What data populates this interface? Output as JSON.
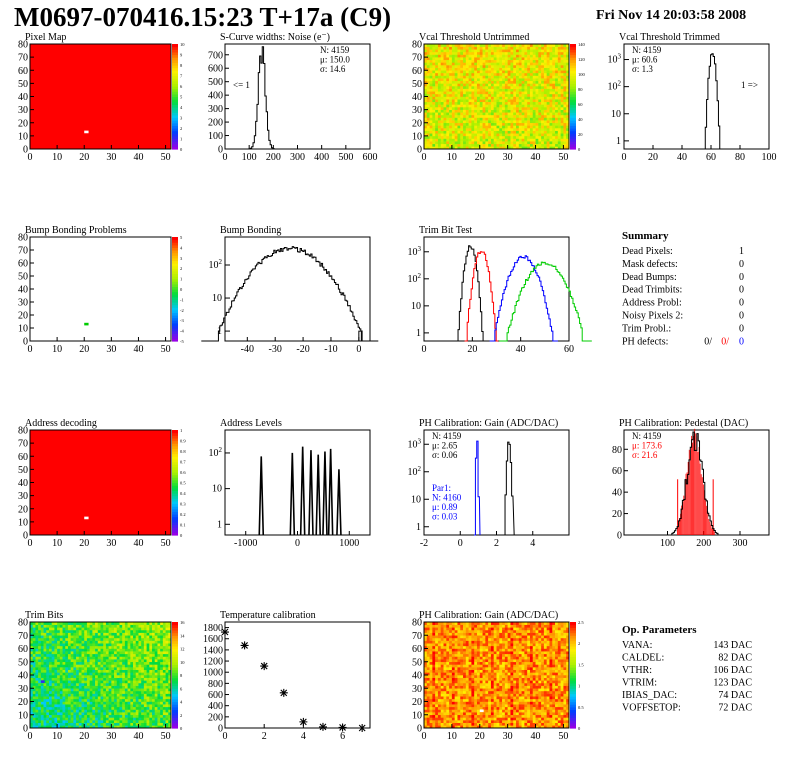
{
  "header": {
    "title": "M0697-070416.15:23 T+17a (C9)",
    "date": "Fri Nov 14 20:03:58 2008"
  },
  "colors": {
    "red": "#ff0000",
    "blue": "#0000ff",
    "green": "#00cc00",
    "black": "#000000"
  },
  "summary": {
    "title": "Summary",
    "rows": [
      {
        "label": "Dead Pixels:",
        "value": "1"
      },
      {
        "label": "Mask defects:",
        "value": "0"
      },
      {
        "label": "Dead Bumps:",
        "value": "0"
      },
      {
        "label": "Dead Trimbits:",
        "value": "0"
      },
      {
        "label": "Address Probl:",
        "value": "0"
      },
      {
        "label": "Noisy Pixels 2:",
        "value": "0"
      },
      {
        "label": "Trim Probl.:",
        "value": "0"
      }
    ],
    "ph_defects": {
      "label": "PH defects:",
      "v1": "0/",
      "v2": "0/",
      "v3": "0"
    }
  },
  "op_params": {
    "title": "Op. Parameters",
    "rows": [
      {
        "label": "VANA:",
        "value": "143 DAC"
      },
      {
        "label": "CALDEL:",
        "value": "82 DAC"
      },
      {
        "label": "VTHR:",
        "value": "106 DAC"
      },
      {
        "label": "VTRIM:",
        "value": "123 DAC"
      },
      {
        "label": "IBIAS_DAC:",
        "value": "74 DAC"
      },
      {
        "label": "VOFFSETOP:",
        "value": "72 DAC"
      }
    ]
  },
  "chart_data": [
    {
      "id": "pixel_map",
      "type": "heatmap",
      "title": "Pixel Map",
      "xlim": [
        0,
        52
      ],
      "ylim": [
        0,
        80
      ],
      "xticks": [
        "0",
        "10",
        "20",
        "30",
        "40",
        "50"
      ],
      "yticks": [
        "0",
        "10",
        "20",
        "30",
        "40",
        "50",
        "60",
        "70",
        "80"
      ],
      "uniform_color": "red",
      "marks": [
        {
          "x": 20,
          "y": 13,
          "color": "white"
        }
      ],
      "zticks": [
        "0",
        "1",
        "2",
        "3",
        "4",
        "5",
        "6",
        "7",
        "8",
        "9",
        "10"
      ]
    },
    {
      "id": "scurve",
      "type": "histogram",
      "title": "S-Curve widths: Noise (e⁻)",
      "xlim": [
        0,
        600
      ],
      "ylim": [
        0,
        780
      ],
      "xticks": [
        "0",
        "100",
        "200",
        "300",
        "400",
        "500",
        "600"
      ],
      "yticks": [
        "0",
        "100",
        "200",
        "300",
        "400",
        "500",
        "600",
        "700"
      ],
      "stats": [
        "N: 4159",
        "μ: 150.0",
        "σ: 14.6"
      ],
      "annotation": "<= 1",
      "series": [
        {
          "color": "black",
          "mean": 150,
          "sigma": 14.6,
          "peak": 730
        }
      ]
    },
    {
      "id": "vcal_untrimmed",
      "type": "heatmap",
      "title": "Vcal Threshold Untrimmed",
      "xlim": [
        0,
        52
      ],
      "ylim": [
        0,
        80
      ],
      "xticks": [
        "0",
        "10",
        "20",
        "30",
        "40",
        "50"
      ],
      "yticks": [
        "0",
        "10",
        "20",
        "30",
        "40",
        "50",
        "60",
        "70",
        "80"
      ],
      "zticks": [
        "0",
        "20",
        "40",
        "60",
        "80",
        "100",
        "120",
        "140"
      ]
    },
    {
      "id": "vcal_trimmed",
      "type": "histogram",
      "title": "Vcal Threshold Trimmed",
      "log": true,
      "xlim": [
        0,
        100
      ],
      "xticks": [
        "0",
        "20",
        "40",
        "60",
        "80",
        "100"
      ],
      "stats": [
        "N: 4159",
        "μ: 60.6",
        "σ:  1.3"
      ],
      "annotation": "1 =>",
      "series": [
        {
          "color": "black",
          "mean": 60.6,
          "sigma": 1.3,
          "peak": 1700
        }
      ]
    },
    {
      "id": "bump_problems",
      "type": "heatmap",
      "title": "Bump Bonding Problems",
      "xlim": [
        0,
        52
      ],
      "ylim": [
        0,
        80
      ],
      "xticks": [
        "0",
        "10",
        "20",
        "30",
        "40",
        "50"
      ],
      "yticks": [
        "0",
        "10",
        "20",
        "30",
        "40",
        "50",
        "60",
        "70",
        "80"
      ],
      "marks": [
        {
          "x": 20,
          "y": 13,
          "color": "green"
        }
      ],
      "zticks": [
        "-5",
        "-4",
        "-3",
        "-2",
        "-1",
        "0",
        "1",
        "2",
        "3",
        "4",
        "5"
      ]
    },
    {
      "id": "bump_bonding",
      "type": "histogram",
      "title": "Bump Bonding",
      "log": true,
      "xlim": [
        -48,
        4
      ],
      "xticks": [
        "-40",
        "-30",
        "-20",
        "-10",
        "0"
      ],
      "series": [
        {
          "color": "black",
          "mean": -25,
          "sigma": 7.5,
          "peak": 320
        }
      ]
    },
    {
      "id": "trim_bit_test",
      "type": "histogram",
      "title": "Trim Bit Test",
      "log": true,
      "xlim": [
        0,
        60
      ],
      "xticks": [
        "0",
        "20",
        "40",
        "60"
      ],
      "series": [
        {
          "color": "black",
          "mean": 19,
          "sigma": 1.3,
          "peak": 1600
        },
        {
          "color": "red",
          "mean": 23.5,
          "sigma": 1.6,
          "peak": 1100
        },
        {
          "color": "blue",
          "mean": 41,
          "sigma": 3.3,
          "peak": 650
        },
        {
          "color": "green",
          "mean": 50,
          "sigma": 4.5,
          "peak": 400
        }
      ]
    },
    {
      "id": "address_decoding",
      "type": "heatmap",
      "title": "Address decoding",
      "xlim": [
        0,
        52
      ],
      "ylim": [
        0,
        80
      ],
      "xticks": [
        "0",
        "10",
        "20",
        "30",
        "40",
        "50"
      ],
      "yticks": [
        "0",
        "10",
        "20",
        "30",
        "40",
        "50",
        "60",
        "70",
        "80"
      ],
      "uniform_color": "red",
      "marks": [
        {
          "x": 20,
          "y": 13,
          "color": "white"
        }
      ],
      "zticks": [
        "0",
        "0.1",
        "0.2",
        "0.3",
        "0.4",
        "0.5",
        "0.6",
        "0.7",
        "0.8",
        "0.9",
        "1"
      ]
    },
    {
      "id": "address_levels",
      "type": "histogram",
      "title": "Address Levels",
      "log": true,
      "xlim": [
        -1400,
        1400
      ],
      "xticks": [
        "-1000",
        "0",
        "1000"
      ],
      "peaks": [
        -700,
        -100,
        100,
        260,
        400,
        530,
        640,
        800
      ]
    },
    {
      "id": "ph_gain",
      "type": "histogram",
      "title": "PH Calibration: Gain (ADC/DAC)",
      "log": true,
      "xlim": [
        -2,
        6
      ],
      "xticks": [
        "-2",
        "0",
        "2",
        "4"
      ],
      "stats": [
        "N: 4159",
        "μ: 2.65",
        "σ: 0.06"
      ],
      "stats2": [
        "Par1:",
        "N: 4160",
        "μ: 0.89",
        "σ: 0.03"
      ],
      "series": [
        {
          "color": "black",
          "mean": 2.65,
          "sigma": 0.06,
          "peak": 1300
        },
        {
          "color": "blue",
          "mean": 0.89,
          "sigma": 0.03,
          "peak": 1500
        }
      ]
    },
    {
      "id": "ph_pedestal",
      "type": "histogram",
      "title": "PH Calibration: Pedestal (DAC)",
      "xlim": [
        -20,
        380
      ],
      "ylim": [
        0,
        98
      ],
      "xticks": [
        "100",
        "200",
        "300"
      ],
      "yticks": [
        "0",
        "20",
        "40",
        "60",
        "80"
      ],
      "stats": [
        "N: 4159",
        "μ: 173.6",
        "σ: 21.6"
      ],
      "series": [
        {
          "color": "black",
          "mean": 173.6,
          "sigma": 21.6,
          "peak": 92
        }
      ]
    },
    {
      "id": "trim_bits",
      "type": "heatmap",
      "title": "Trim Bits",
      "xlim": [
        0,
        52
      ],
      "ylim": [
        0,
        80
      ],
      "xticks": [
        "0",
        "10",
        "20",
        "30",
        "40",
        "50"
      ],
      "yticks": [
        "0",
        "10",
        "20",
        "30",
        "40",
        "50",
        "60",
        "70",
        "80"
      ],
      "zticks": [
        "0",
        "2",
        "4",
        "6",
        "8",
        "10",
        "12",
        "14",
        "16"
      ]
    },
    {
      "id": "temp_cal",
      "type": "scatter",
      "title": "Temperature calibration",
      "xlim": [
        0,
        7.4
      ],
      "ylim": [
        0,
        1900
      ],
      "xticks": [
        "0",
        "2",
        "4",
        "6"
      ],
      "yticks": [
        "0",
        "200",
        "400",
        "600",
        "800",
        "1000",
        "1200",
        "1400",
        "1600",
        "1800"
      ],
      "x": [
        0,
        1,
        2,
        3,
        4,
        5,
        6,
        7
      ],
      "y": [
        1720,
        1480,
        1110,
        630,
        110,
        20,
        10,
        0
      ]
    },
    {
      "id": "ph_gain_map",
      "type": "heatmap",
      "title": "PH Calibration: Gain (ADC/DAC)",
      "xlim": [
        0,
        52
      ],
      "ylim": [
        0,
        80
      ],
      "xticks": [
        "0",
        "10",
        "20",
        "30",
        "40",
        "50"
      ],
      "yticks": [
        "0",
        "10",
        "20",
        "30",
        "40",
        "50",
        "60",
        "70",
        "80"
      ],
      "zticks": [
        "0",
        "0.5",
        "1",
        "1.5",
        "2",
        "2.5"
      ]
    }
  ]
}
